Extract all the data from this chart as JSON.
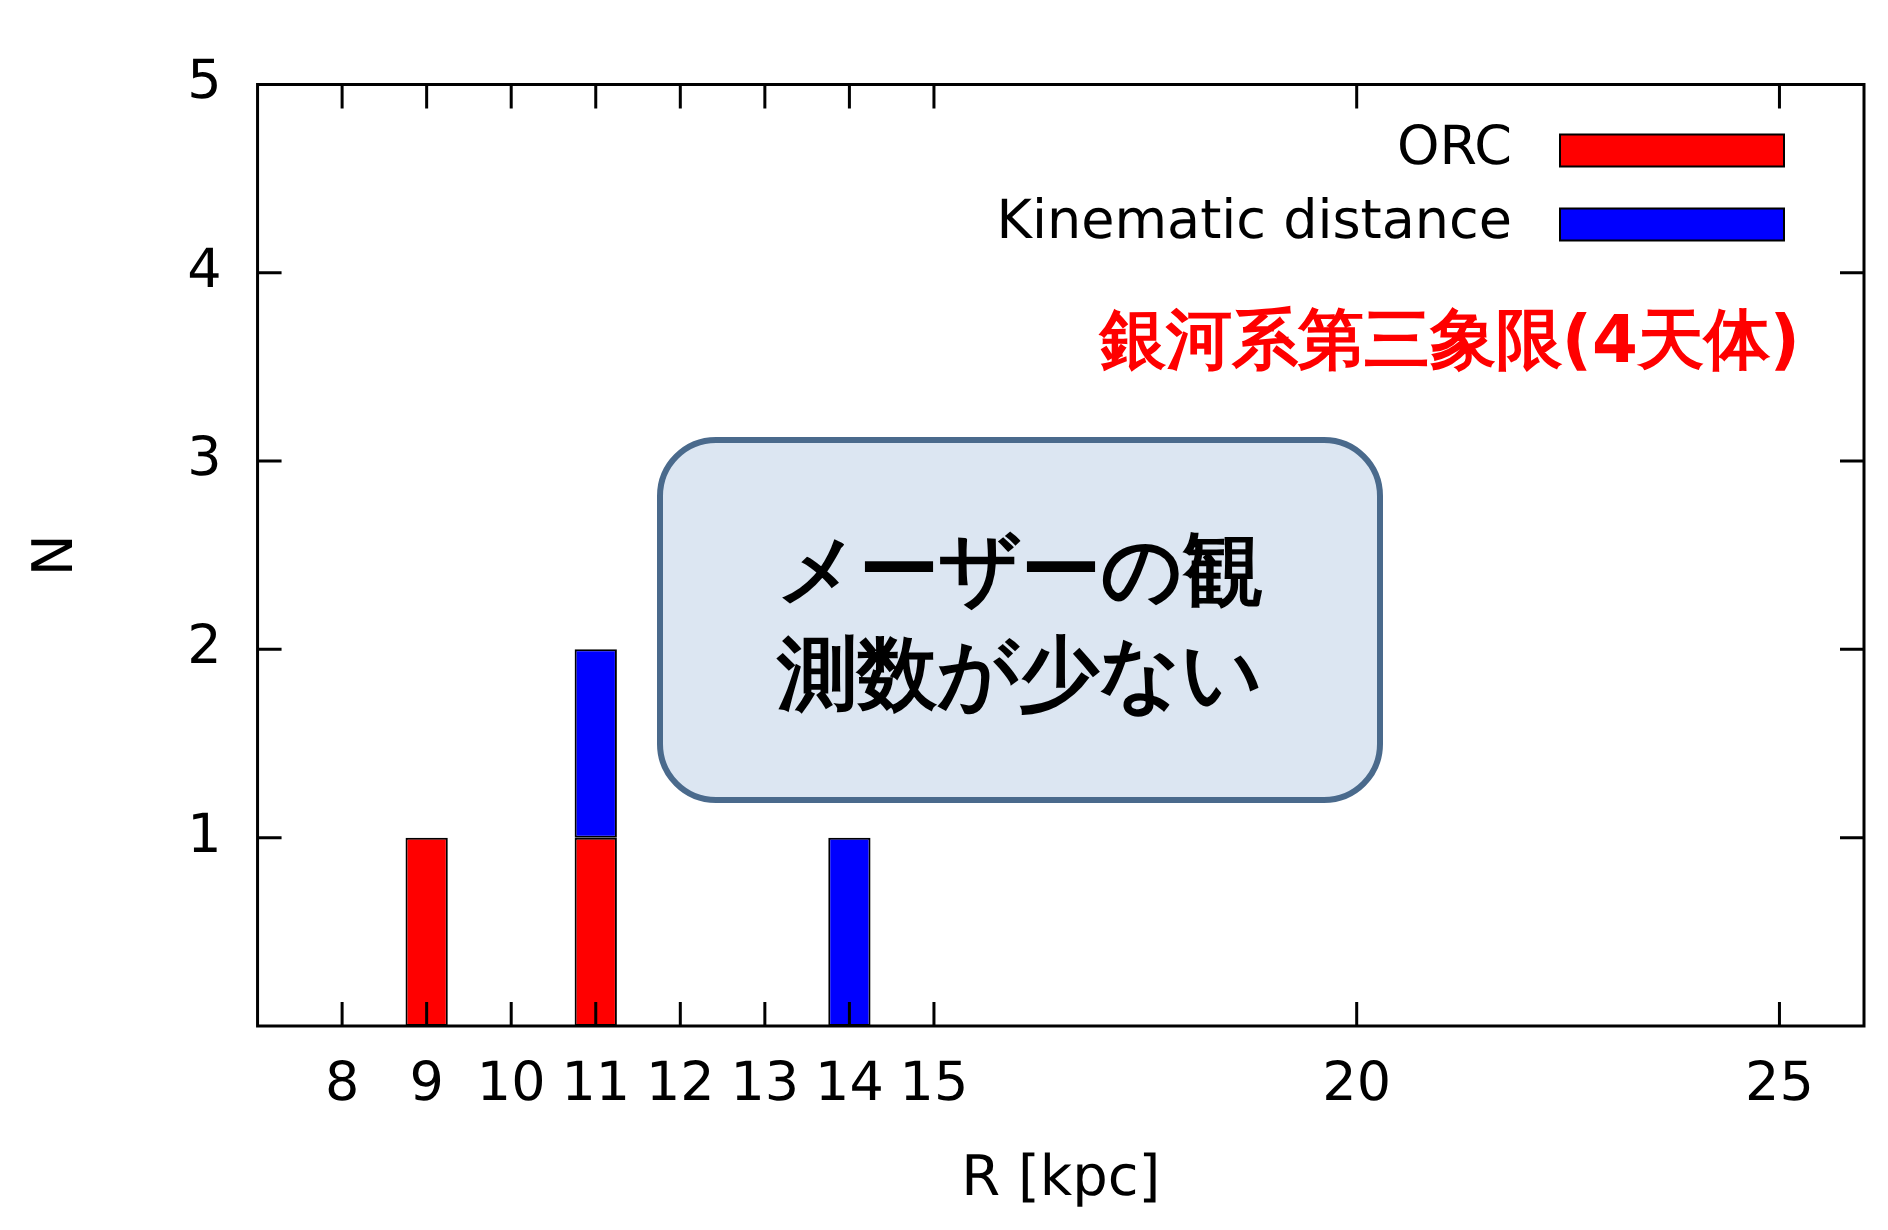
{
  "chart_data": {
    "type": "bar",
    "xlabel": "R [kpc]",
    "ylabel": "N",
    "x": [
      9,
      11,
      14
    ],
    "series": [
      {
        "name": "ORC",
        "color": "#ff0000",
        "values": [
          1,
          1,
          null
        ]
      },
      {
        "name": "Kinematic distance",
        "color": "#0000ff",
        "values": [
          null,
          1,
          1
        ]
      }
    ],
    "stacked": true,
    "xlim": [
      7,
      26
    ],
    "xticks": [
      8,
      9,
      10,
      11,
      12,
      13,
      14,
      15,
      20,
      25
    ],
    "ylim": [
      0,
      5
    ],
    "yticks": [
      1,
      2,
      3,
      4,
      5
    ],
    "grid": false,
    "legend": "top right",
    "annotations": [
      "銀河系第三象限(4天体)",
      "メーザーの観測数が少ない"
    ]
  }
}
